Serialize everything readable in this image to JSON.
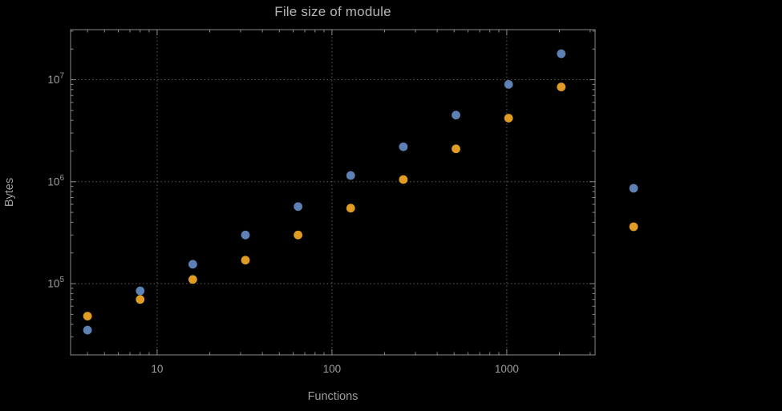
{
  "chart_data": {
    "type": "scatter",
    "title": "File size of module",
    "xlabel": "Functions",
    "ylabel": "Bytes",
    "x_scale": "log",
    "y_scale": "log",
    "xlim": [
      3.2,
      3200
    ],
    "ylim": [
      20000,
      31000000
    ],
    "grid": "dotted-at-major-ticks",
    "x": [
      4,
      8,
      16,
      32,
      64,
      128,
      256,
      512,
      1024,
      2048
    ],
    "series": [
      {
        "name": "blue-series",
        "color": "#5e81b5",
        "values": [
          35000,
          85000,
          155000,
          300000,
          570000,
          1150000,
          2200000,
          4500000,
          9000000,
          18000000
        ]
      },
      {
        "name": "orange-series",
        "color": "#e19c24",
        "values": [
          48000,
          70000,
          110000,
          170000,
          300000,
          550000,
          1050000,
          2100000,
          4200000,
          8500000
        ]
      }
    ],
    "x_ticks": [
      {
        "value": 10,
        "label": "10"
      },
      {
        "value": 100,
        "label": "100"
      },
      {
        "value": 1000,
        "label": "1000"
      }
    ],
    "y_ticks": [
      {
        "value": 100000,
        "base": "10",
        "exponent": "5"
      },
      {
        "value": 1000000,
        "base": "10",
        "exponent": "6"
      },
      {
        "value": 10000000,
        "base": "10",
        "exponent": "7"
      }
    ],
    "legend": {
      "position": "outside-right",
      "labels_visible": false,
      "entries": [
        {
          "marker_color": "#5e81b5"
        },
        {
          "marker_color": "#e19c24"
        }
      ]
    }
  },
  "style": {
    "background": "#000000",
    "frame_color": "#8a8a8a",
    "grid_color": "#5e5e5e",
    "tick_color": "#8a8a8a",
    "text_color": "#9e9e9e",
    "title_color": "#b5b5b5"
  }
}
